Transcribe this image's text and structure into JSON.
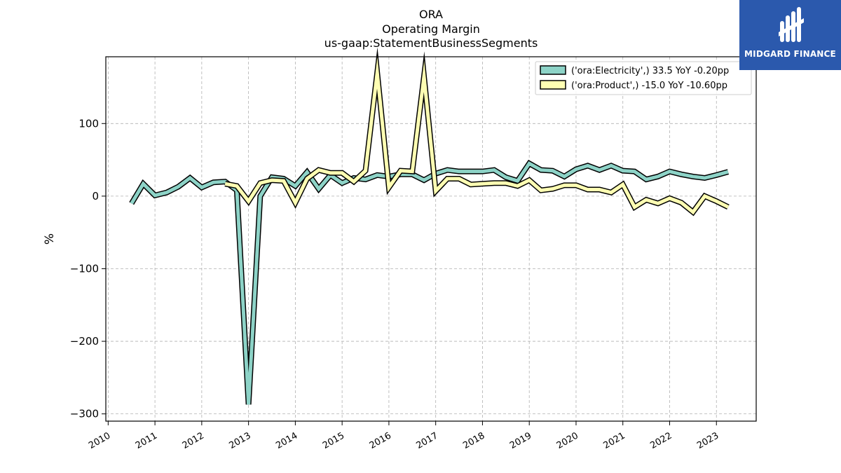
{
  "logo": {
    "text": "MIDGARD FINANCE",
    "icon": "midgard-logo-icon",
    "background": "#2b59ad"
  },
  "chart_data": {
    "type": "line",
    "title": [
      "ORA",
      "Operating Margin",
      "us-gaap:StatementBusinessSegments"
    ],
    "xlabel": "",
    "ylabel": "%",
    "xlim": [
      2009.95,
      2023.85
    ],
    "ylim": [
      -310,
      192
    ],
    "yticks": [
      100,
      0,
      -100,
      -200,
      -300
    ],
    "ytick_labels": [
      "100",
      "0",
      "−100",
      "−200",
      "−300"
    ],
    "xticks": [
      2010,
      2011,
      2012,
      2013,
      2014,
      2015,
      2016,
      2017,
      2018,
      2019,
      2020,
      2021,
      2022,
      2023
    ],
    "xtick_labels": [
      "2010",
      "2011",
      "2012",
      "2013",
      "2014",
      "2015",
      "2016",
      "2017",
      "2018",
      "2019",
      "2020",
      "2021",
      "2022",
      "2023"
    ],
    "grid": true,
    "legend_placement": "top-right",
    "series": [
      {
        "name": "('ora:Electricity',) 33.5 YoY -0.20pp",
        "color": "#8dd3c7",
        "points": [
          [
            2010.5,
            -10
          ],
          [
            2010.75,
            17
          ],
          [
            2011.0,
            1
          ],
          [
            2011.25,
            5
          ],
          [
            2011.5,
            13
          ],
          [
            2011.75,
            25
          ],
          [
            2012.0,
            12
          ],
          [
            2012.25,
            19
          ],
          [
            2012.5,
            20
          ],
          [
            2012.75,
            8
          ],
          [
            2013.0,
            -287
          ],
          [
            2013.25,
            0
          ],
          [
            2013.5,
            26
          ],
          [
            2013.75,
            24
          ],
          [
            2014.0,
            14
          ],
          [
            2014.25,
            33
          ],
          [
            2014.5,
            10
          ],
          [
            2014.75,
            29
          ],
          [
            2015.0,
            18
          ],
          [
            2015.25,
            25
          ],
          [
            2015.5,
            23
          ],
          [
            2015.75,
            29
          ],
          [
            2016.0,
            27
          ],
          [
            2016.25,
            30
          ],
          [
            2016.5,
            30
          ],
          [
            2016.75,
            22
          ],
          [
            2017.0,
            31
          ],
          [
            2017.25,
            36
          ],
          [
            2017.5,
            34
          ],
          [
            2017.75,
            34
          ],
          [
            2018.0,
            34
          ],
          [
            2018.25,
            36
          ],
          [
            2018.5,
            26
          ],
          [
            2018.75,
            21
          ],
          [
            2019.0,
            45
          ],
          [
            2019.25,
            36
          ],
          [
            2019.5,
            35
          ],
          [
            2019.75,
            27
          ],
          [
            2020.0,
            37
          ],
          [
            2020.25,
            42
          ],
          [
            2020.5,
            36
          ],
          [
            2020.75,
            42
          ],
          [
            2021.0,
            35
          ],
          [
            2021.25,
            34
          ],
          [
            2021.5,
            23
          ],
          [
            2021.75,
            27
          ],
          [
            2022.0,
            34
          ],
          [
            2022.25,
            30
          ],
          [
            2022.5,
            27
          ],
          [
            2022.75,
            25
          ],
          [
            2023.0,
            29
          ],
          [
            2023.25,
            33.5
          ]
        ]
      },
      {
        "name": "('ora:Product',) -15.0 YoY -10.60pp",
        "color": "#ffffb3",
        "points": [
          [
            2012.5,
            17
          ],
          [
            2012.75,
            14
          ],
          [
            2013.0,
            -7
          ],
          [
            2013.25,
            18
          ],
          [
            2013.5,
            22
          ],
          [
            2013.75,
            21
          ],
          [
            2014.0,
            -9
          ],
          [
            2014.25,
            24
          ],
          [
            2014.5,
            36
          ],
          [
            2014.75,
            32
          ],
          [
            2015.0,
            32
          ],
          [
            2015.25,
            20
          ],
          [
            2015.5,
            35
          ],
          [
            2015.75,
            170
          ],
          [
            2016.0,
            12
          ],
          [
            2016.25,
            35
          ],
          [
            2016.5,
            34
          ],
          [
            2016.75,
            165
          ],
          [
            2017.0,
            7
          ],
          [
            2017.25,
            24
          ],
          [
            2017.5,
            24
          ],
          [
            2017.75,
            16
          ],
          [
            2018.0,
            17
          ],
          [
            2018.25,
            18
          ],
          [
            2018.5,
            18
          ],
          [
            2018.75,
            14
          ],
          [
            2019.0,
            22
          ],
          [
            2019.25,
            8
          ],
          [
            2019.5,
            10
          ],
          [
            2019.75,
            15
          ],
          [
            2020.0,
            15
          ],
          [
            2020.25,
            9
          ],
          [
            2020.5,
            9
          ],
          [
            2020.75,
            5
          ],
          [
            2021.0,
            16
          ],
          [
            2021.25,
            -15
          ],
          [
            2021.5,
            -5
          ],
          [
            2021.75,
            -10
          ],
          [
            2022.0,
            -3
          ],
          [
            2022.25,
            -9
          ],
          [
            2022.5,
            -22
          ],
          [
            2022.75,
            0
          ],
          [
            2023.0,
            -7
          ],
          [
            2023.25,
            -15
          ]
        ]
      }
    ]
  }
}
